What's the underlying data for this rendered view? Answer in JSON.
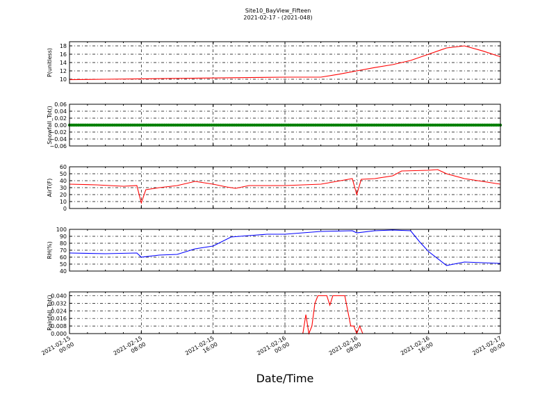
{
  "chart_data": {
    "title": "Site10_BayView_Fifteen",
    "subtitle": "2021-02-17 - (2021-048)",
    "xlabel": "Date/Time",
    "x_tick_labels": [
      [
        "2021-02-15",
        "00:00"
      ],
      [
        "2021-02-15",
        "08:00"
      ],
      [
        "2021-02-15",
        "16:00"
      ],
      [
        "2021-02-16",
        "00:00"
      ],
      [
        "2021-02-16",
        "08:00"
      ],
      [
        "2021-02-16",
        "16:00"
      ],
      [
        "2021-02-17",
        "00:00"
      ]
    ],
    "x_range": [
      "2021-02-15 00:00",
      "2021-02-17 00:00"
    ],
    "grid": true,
    "panels": [
      {
        "type": "line",
        "ylabel": "P(unitless)",
        "color": "#ff0000",
        "ylim": [
          9,
          19
        ],
        "yticks": [
          10,
          12,
          14,
          16,
          18
        ],
        "ytick_labels": [
          "10",
          "12",
          "14",
          "16",
          "18"
        ],
        "x": [
          "2021-02-15 00:00",
          "2021-02-15 04:00",
          "2021-02-15 08:00",
          "2021-02-15 12:00",
          "2021-02-15 16:00",
          "2021-02-15 20:00",
          "2021-02-16 00:00",
          "2021-02-16 04:00",
          "2021-02-16 06:00",
          "2021-02-16 08:00",
          "2021-02-16 10:00",
          "2021-02-16 12:00",
          "2021-02-16 14:00",
          "2021-02-16 16:00",
          "2021-02-16 18:00",
          "2021-02-16 20:00",
          "2021-02-16 22:00",
          "2021-02-17 00:00"
        ],
        "y": [
          9.9,
          10.0,
          10.1,
          10.2,
          10.3,
          10.4,
          10.5,
          10.5,
          11.2,
          12.0,
          12.8,
          13.5,
          14.5,
          16.0,
          17.5,
          18.0,
          16.8,
          15.4
        ]
      },
      {
        "type": "line",
        "ylabel": "Snowfall_Tot()",
        "color": "#008000",
        "markers": true,
        "ylim": [
          -0.06,
          0.06
        ],
        "yticks": [
          -0.06,
          -0.04,
          -0.02,
          0.0,
          0.02,
          0.04,
          0.06
        ],
        "ytick_labels": [
          "−0.06",
          "−0.04",
          "−0.02",
          "0.00",
          "0.02",
          "0.04",
          "0.06"
        ],
        "x": [
          "2021-02-15 00:00",
          "2021-02-17 00:00"
        ],
        "y": [
          0.0,
          0.0
        ]
      },
      {
        "type": "line",
        "ylabel": "AirT(F)",
        "color": "#ff0000",
        "ylim": [
          0,
          60
        ],
        "yticks": [
          0,
          10,
          20,
          30,
          40,
          50,
          60
        ],
        "ytick_labels": [
          "0",
          "10",
          "20",
          "30",
          "40",
          "50",
          "60"
        ],
        "x": [
          "2021-02-15 00:00",
          "2021-02-15 03:00",
          "2021-02-15 06:00",
          "2021-02-15 07:30",
          "2021-02-15 08:00",
          "2021-02-15 08:30",
          "2021-02-15 10:00",
          "2021-02-15 12:00",
          "2021-02-15 14:00",
          "2021-02-15 16:00",
          "2021-02-15 17:30",
          "2021-02-15 18:30",
          "2021-02-15 20:00",
          "2021-02-16 00:00",
          "2021-02-16 04:00",
          "2021-02-16 07:30",
          "2021-02-16 08:00",
          "2021-02-16 08:30",
          "2021-02-16 10:00",
          "2021-02-16 12:00",
          "2021-02-16 13:00",
          "2021-02-16 16:00",
          "2021-02-16 17:00",
          "2021-02-16 18:00",
          "2021-02-16 20:00",
          "2021-02-17 00:00"
        ],
        "y": [
          35,
          34,
          32,
          33,
          8,
          27,
          30,
          33,
          39,
          35,
          31,
          29,
          33,
          33,
          35,
          43,
          20,
          42,
          43,
          47,
          54,
          55,
          56,
          50,
          43,
          35
        ]
      },
      {
        "type": "line",
        "ylabel": "RH(%)",
        "color": "#0000ff",
        "ylim": [
          40,
          100
        ],
        "yticks": [
          40,
          50,
          60,
          70,
          80,
          90,
          100
        ],
        "ytick_labels": [
          "40",
          "50",
          "60",
          "70",
          "80",
          "90",
          "100"
        ],
        "x": [
          "2021-02-15 00:00",
          "2021-02-15 04:00",
          "2021-02-15 07:30",
          "2021-02-15 08:00",
          "2021-02-15 10:00",
          "2021-02-15 12:00",
          "2021-02-15 14:00",
          "2021-02-15 16:00",
          "2021-02-15 18:00",
          "2021-02-15 20:00",
          "2021-02-15 22:00",
          "2021-02-16 00:00",
          "2021-02-16 04:00",
          "2021-02-16 07:30",
          "2021-02-16 08:00",
          "2021-02-16 10:00",
          "2021-02-16 12:00",
          "2021-02-16 14:00",
          "2021-02-16 15:00",
          "2021-02-16 16:00",
          "2021-02-16 18:00",
          "2021-02-16 20:00",
          "2021-02-17 00:00"
        ],
        "y": [
          66,
          65,
          66,
          60,
          63,
          64,
          72,
          76,
          89,
          91,
          93,
          93,
          97,
          98,
          95,
          98,
          99,
          98,
          82,
          68,
          48,
          53,
          51
        ]
      },
      {
        "type": "line",
        "ylabel": "Rainfall_Tot()",
        "color": "#ff0000",
        "ylim": [
          0,
          0.044
        ],
        "yticks": [
          0.0,
          0.008,
          0.016,
          0.024,
          0.032,
          0.04
        ],
        "ytick_labels": [
          "0.000",
          "0.008",
          "0.016",
          "0.024",
          "0.032",
          "0.040"
        ],
        "x": [
          "2021-02-15 00:00",
          "2021-02-16 02:00",
          "2021-02-16 02:20",
          "2021-02-16 02:40",
          "2021-02-16 03:00",
          "2021-02-16 03:20",
          "2021-02-16 03:40",
          "2021-02-16 04:00",
          "2021-02-16 04:40",
          "2021-02-16 05:00",
          "2021-02-16 05:20",
          "2021-02-16 06:40",
          "2021-02-16 07:00",
          "2021-02-16 07:20",
          "2021-02-16 07:40",
          "2021-02-16 08:00",
          "2021-02-16 08:20",
          "2021-02-16 08:40",
          "2021-02-17 00:00"
        ],
        "y": [
          0,
          0,
          0.02,
          0,
          0.008,
          0.032,
          0.04,
          0.04,
          0.04,
          0.03,
          0.04,
          0.04,
          0.024,
          0.008,
          0.008,
          0,
          0.008,
          0,
          0
        ]
      }
    ]
  }
}
